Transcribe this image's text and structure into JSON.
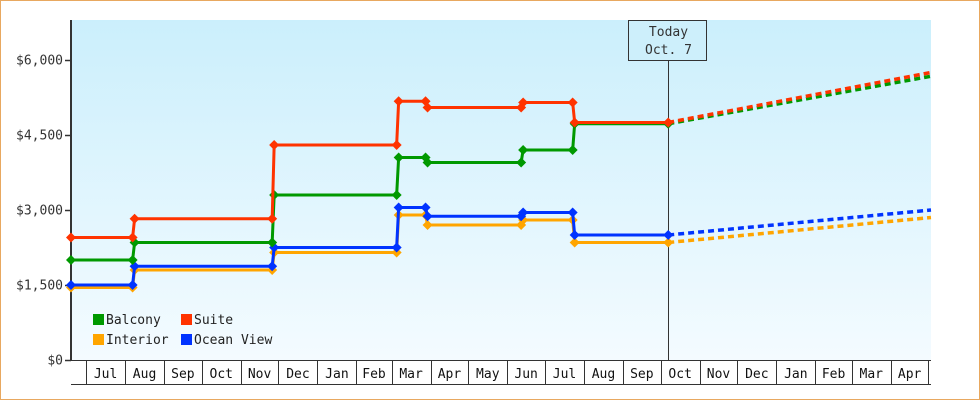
{
  "chart_data": {
    "type": "line",
    "step": true,
    "title": "",
    "xlabel": "",
    "ylabel": "",
    "ylim": [
      0,
      6800
    ],
    "xlim": [
      "2014-06-19",
      "2016-05-03"
    ],
    "y_ticks": [
      0,
      1500,
      3000,
      4500,
      6000
    ],
    "y_tick_labels": [
      "$0",
      "$1,500",
      "$3,000",
      "$4,500",
      "$6,000"
    ],
    "x_tick_labels": [
      "Jul",
      "Aug",
      "Sep",
      "Oct",
      "Nov",
      "Dec",
      "Jan",
      "Feb",
      "Mar",
      "Apr",
      "May",
      "Jun",
      "Jul",
      "Aug",
      "Sep",
      "Oct",
      "Nov",
      "Dec",
      "Jan",
      "Feb",
      "Mar",
      "Apr"
    ],
    "grid": false,
    "background": "light blue vertical gradient",
    "legend_position": "bottom-left",
    "today_marker": {
      "line1": "Today",
      "line2": "Oct. 7",
      "date": "2015-10-07"
    },
    "forecast_end": "2016-05-03",
    "series": [
      {
        "name": "Balcony",
        "color": "#009900",
        "dates": [
          "2014-06-19",
          "2014-08-07",
          "2014-11-26",
          "2015-03-05",
          "2015-03-28",
          "2015-06-12",
          "2015-07-23"
        ],
        "values": [
          2000,
          2350,
          3300,
          4050,
          3950,
          4200,
          4725
        ],
        "forecast_value": 5675
      },
      {
        "name": "Suite",
        "color": "#ff3300",
        "dates": [
          "2014-06-19",
          "2014-08-07",
          "2014-11-26",
          "2015-03-05",
          "2015-03-28",
          "2015-06-12",
          "2015-07-23"
        ],
        "values": [
          2450,
          2825,
          4300,
          5175,
          5050,
          5150,
          4750
        ],
        "forecast_value": 5750
      },
      {
        "name": "Interior",
        "color": "#ffa500",
        "dates": [
          "2014-06-19",
          "2014-08-07",
          "2014-11-26",
          "2015-03-05",
          "2015-03-28",
          "2015-06-12",
          "2015-07-23"
        ],
        "values": [
          1450,
          1800,
          2150,
          2900,
          2700,
          2800,
          2350
        ],
        "forecast_value": 2850
      },
      {
        "name": "Ocean View",
        "color": "#0033ff",
        "dates": [
          "2014-06-19",
          "2014-08-07",
          "2014-11-26",
          "2015-03-05",
          "2015-03-28",
          "2015-06-12",
          "2015-07-23"
        ],
        "values": [
          1500,
          1875,
          2250,
          3050,
          2875,
          2950,
          2500
        ],
        "forecast_value": 3000
      }
    ],
    "legend_order": [
      "Balcony",
      "Suite",
      "Interior",
      "Ocean View"
    ]
  },
  "colors": {
    "frame": "#e8a860",
    "axis": "#333333",
    "bg_top": "#cbeffc",
    "bg_bottom": "#f4fbff"
  }
}
